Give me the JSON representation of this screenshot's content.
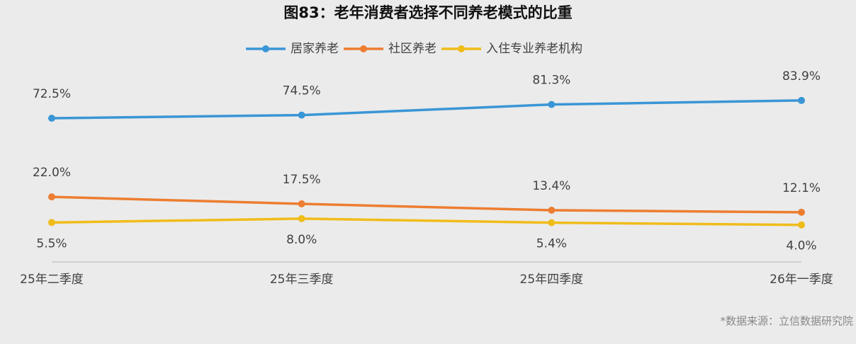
{
  "chart_data": {
    "type": "line",
    "title": "图83：老年消费者选择不同养老模式的比重",
    "categories": [
      "25年二季度",
      "25年三季度",
      "25年四季度",
      "26年一季度"
    ],
    "series": [
      {
        "name": "居家养老",
        "color": "#3a96d6",
        "values": [
          72.5,
          74.5,
          81.3,
          83.9
        ],
        "value_labels": [
          "72.5%",
          "74.5%",
          "81.3%",
          "83.9%"
        ],
        "label_position": "above"
      },
      {
        "name": "社区养老",
        "color": "#ed7d31",
        "values": [
          22.0,
          17.5,
          13.4,
          12.1
        ],
        "value_labels": [
          "22.0%",
          "17.5%",
          "13.4%",
          "12.1%"
        ],
        "label_position": "above"
      },
      {
        "name": "入住专业养老机构",
        "color": "#f0bc1a",
        "values": [
          5.5,
          8.0,
          5.4,
          4.0
        ],
        "value_labels": [
          "5.5%",
          "8.0%",
          "5.4%",
          "4.0%"
        ],
        "label_position": "below"
      }
    ],
    "source": "*数据来源：立信数据研究院"
  }
}
